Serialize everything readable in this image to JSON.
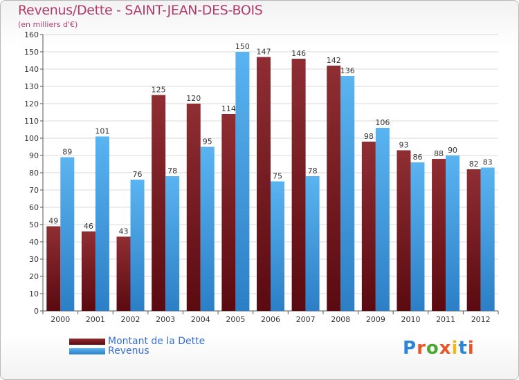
{
  "chart_data": {
    "type": "bar",
    "title": "Revenus/Dette - SAINT-JEAN-DES-BOIS",
    "subtitle": "(en milliers d'€)",
    "categories": [
      "2000",
      "2001",
      "2002",
      "2003",
      "2004",
      "2005",
      "2006",
      "2007",
      "2008",
      "2009",
      "2010",
      "2011",
      "2012"
    ],
    "series": [
      {
        "name": "Montant de la Dette",
        "color": "#7a1e24",
        "values": [
          49,
          46,
          43,
          125,
          120,
          114,
          147,
          146,
          142,
          98,
          93,
          88,
          82
        ]
      },
      {
        "name": "Revenus",
        "color": "#4aa3e6",
        "values": [
          89,
          101,
          76,
          78,
          95,
          150,
          75,
          78,
          136,
          106,
          86,
          90,
          83
        ]
      }
    ],
    "ylim": [
      0,
      160
    ],
    "ytick_step": 10,
    "grid": true,
    "legend_position": "bottom-left"
  },
  "brand": {
    "text": "Proxiti",
    "letters": [
      "P",
      "r",
      "o",
      "x",
      "i",
      "t",
      "i"
    ],
    "colors": [
      "#2c86d6",
      "#e8572b",
      "#4aa82f",
      "#e8572b",
      "#f1b81c",
      "#2c86d6",
      "#e8572b"
    ]
  },
  "colors": {
    "title": "#b03c6a",
    "legend_text": "#3a6fd6",
    "grid": "#d9d9d9",
    "label": "#333333"
  }
}
